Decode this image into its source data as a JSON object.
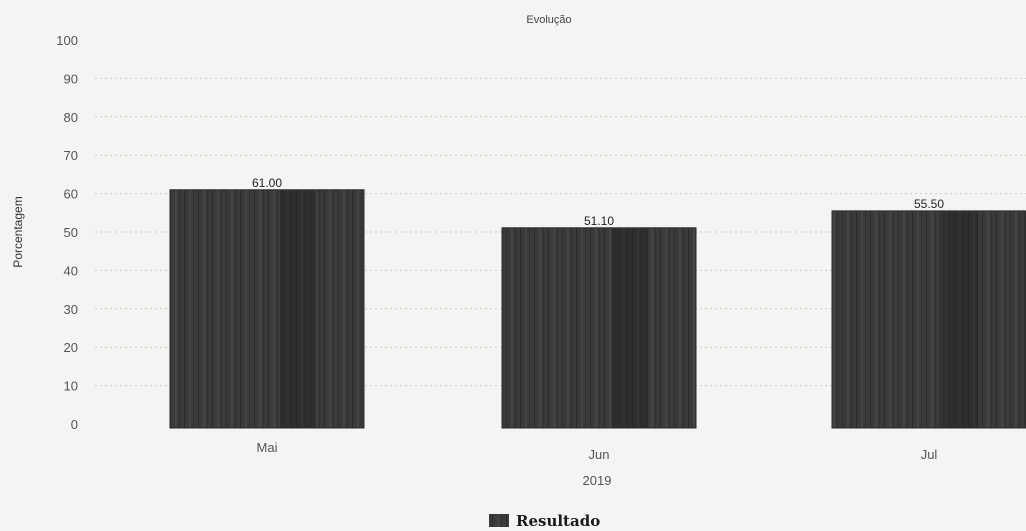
{
  "chart_data": {
    "type": "bar",
    "title": "Evolução",
    "xlabel": "2019",
    "ylabel": "Porcentagem",
    "categories": [
      "Mai",
      "Jun",
      "Jul"
    ],
    "series": [
      {
        "name": "Resultado",
        "values": [
          61.0,
          51.1,
          55.5
        ],
        "value_labels": [
          "61.00",
          "51.10",
          "55.50"
        ]
      }
    ],
    "ylim": [
      0,
      100
    ],
    "yticks": [
      0,
      10,
      20,
      30,
      40,
      50,
      60,
      70,
      80,
      90,
      100
    ],
    "grid": true,
    "legend_position": "bottom-center",
    "colors": {
      "bar": "#3a3a3a",
      "bar_stripe": "#242424",
      "background": "#f4f4f2",
      "grid": "#c9c9c6"
    }
  }
}
